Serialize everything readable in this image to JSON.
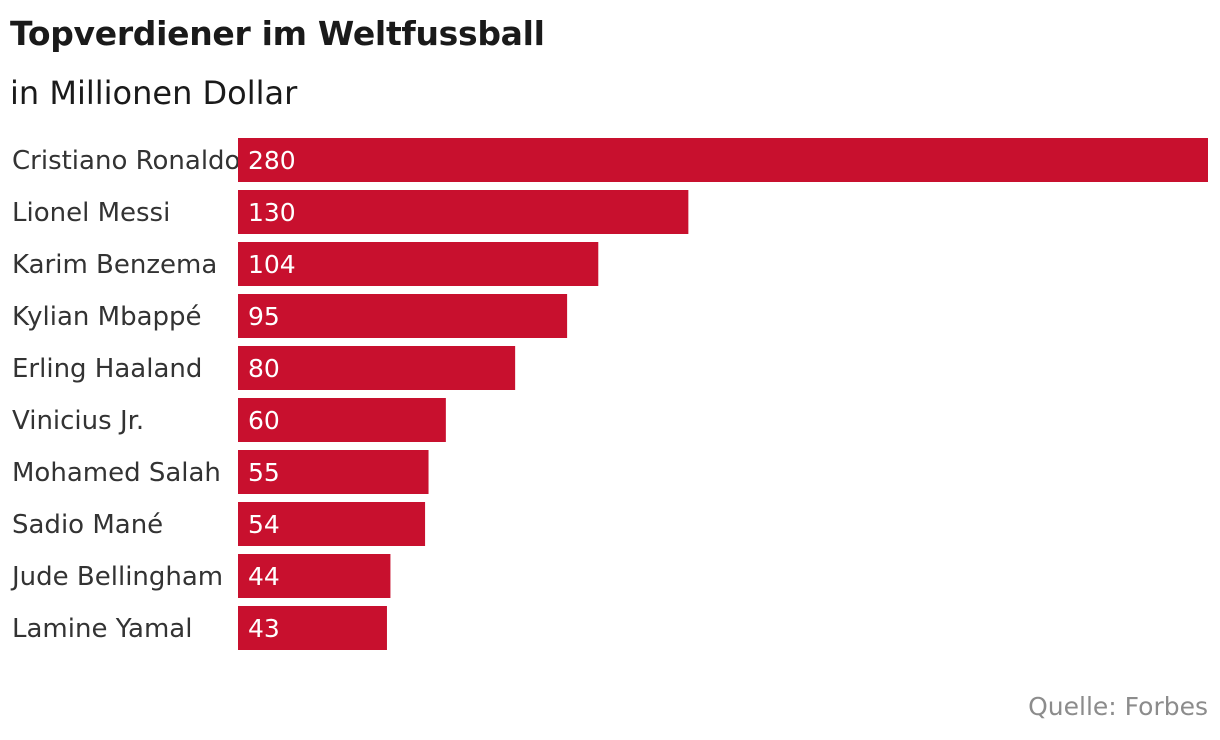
{
  "chart_data": {
    "type": "bar",
    "orientation": "horizontal",
    "title": "Topverdiener im Weltfussball",
    "subtitle": "in Millionen Dollar",
    "categories": [
      "Cristiano Ronaldo",
      "Lionel Messi",
      "Karim Benzema",
      "Kylian Mbappé",
      "Erling Haaland",
      "Vinicius Jr.",
      "Mohamed Salah",
      "Sadio Mané",
      "Jude Bellingham",
      "Lamine Yamal"
    ],
    "values": [
      280,
      130,
      104,
      95,
      80,
      60,
      55,
      54,
      44,
      43
    ],
    "xlim": [
      0,
      280
    ],
    "grid": false,
    "legend": "none",
    "bar_color": "#c8102e",
    "source": "Quelle: Forbes"
  }
}
